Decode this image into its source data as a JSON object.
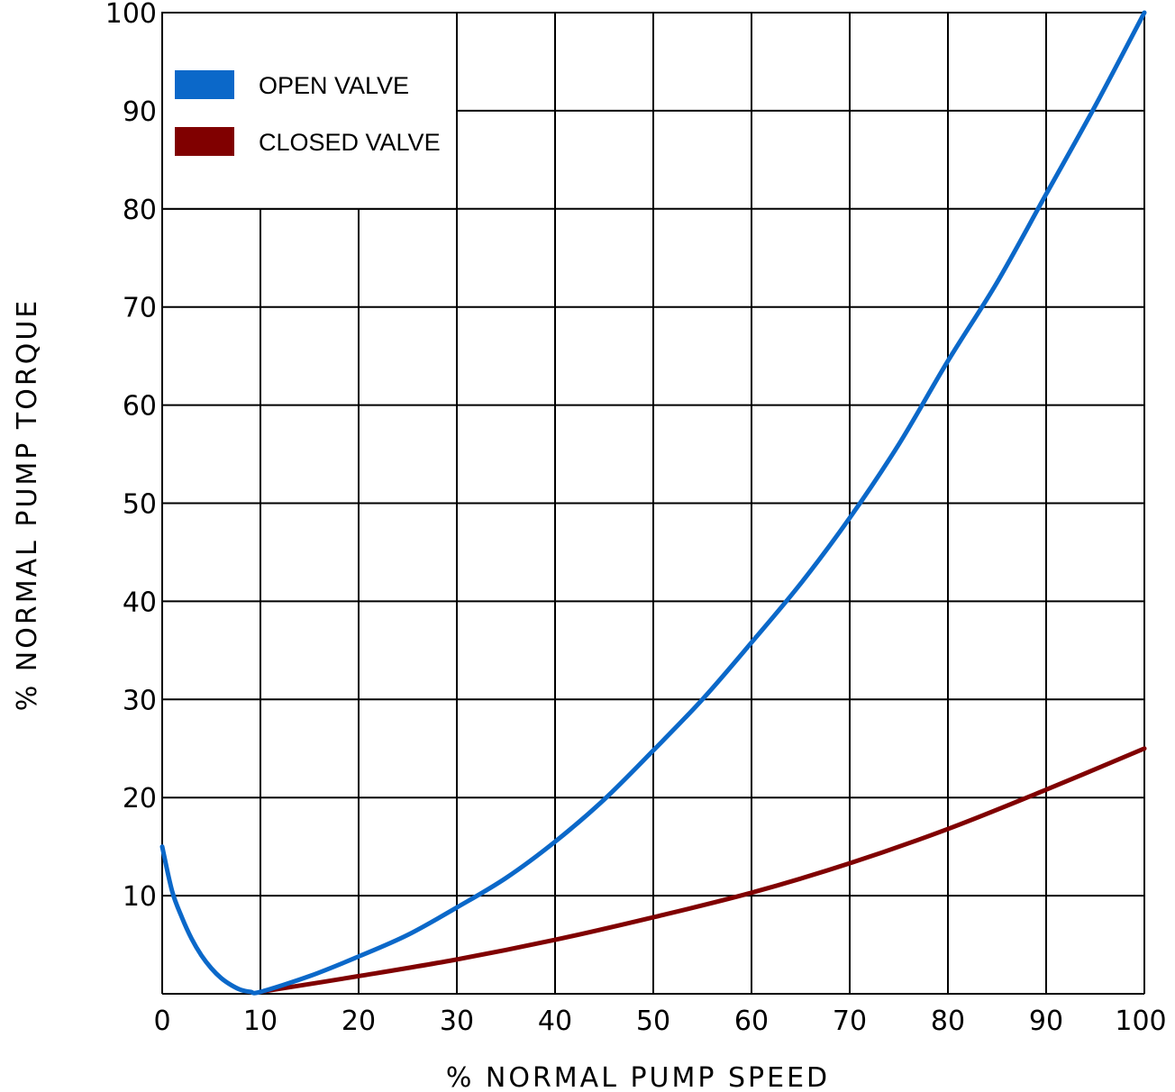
{
  "chart_data": {
    "type": "line",
    "title": "",
    "xlabel": "% NORMAL PUMP SPEED",
    "ylabel": "% NORMAL PUMP TORQUE",
    "xlim": [
      0,
      100
    ],
    "ylim": [
      0,
      100
    ],
    "x_ticks": [
      "0",
      "10",
      "20",
      "30",
      "40",
      "50",
      "60",
      "70",
      "80",
      "90",
      "100"
    ],
    "y_ticks": [
      "10",
      "20",
      "30",
      "40",
      "50",
      "60",
      "70",
      "80",
      "90",
      "100"
    ],
    "grid": true,
    "legend_position": "top-left",
    "series": [
      {
        "name": "OPEN VALVE",
        "color": "#0b68c9",
        "x": [
          0,
          1,
          2,
          3,
          4,
          5,
          6,
          7,
          8,
          9,
          10,
          15,
          20,
          25,
          30,
          35,
          40,
          45,
          50,
          55,
          60,
          65,
          70,
          75,
          80,
          85,
          90,
          95,
          100
        ],
        "y": [
          15,
          10.5,
          7.8,
          5.6,
          3.9,
          2.6,
          1.6,
          0.9,
          0.4,
          0.2,
          0.2,
          1.8,
          3.8,
          6.0,
          8.8,
          11.8,
          15.5,
          19.8,
          24.8,
          30.0,
          35.8,
          41.8,
          48.5,
          56.0,
          64.5,
          72.5,
          81.5,
          90.5,
          100
        ]
      },
      {
        "name": "CLOSED VALVE",
        "color": "#800000",
        "x": [
          10,
          20,
          30,
          40,
          50,
          60,
          70,
          80,
          90,
          100
        ],
        "y": [
          0.2,
          1.8,
          3.5,
          5.5,
          7.8,
          10.3,
          13.3,
          16.8,
          20.8,
          25.0
        ]
      }
    ]
  }
}
